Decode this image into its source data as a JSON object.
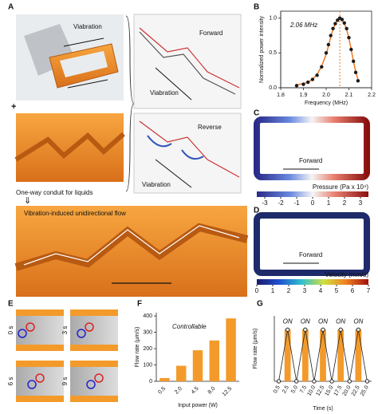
{
  "figure": {
    "panel_labels": [
      "A",
      "B",
      "C",
      "D",
      "E",
      "F",
      "G"
    ],
    "a_texts": {
      "vibration_top": "Viabration",
      "plus": "+",
      "conduit": "One-way conduit for liquids",
      "arrow_down": "⇓",
      "flow": "Vibration-induced unidirectional flow",
      "forward": "Forward",
      "forward_vibration": "Viabration",
      "reverse": "Reverse",
      "reverse_vibration": "Viabration"
    },
    "c_texts": {
      "forward": "Forward"
    },
    "d_texts": {
      "forward": "Forward"
    },
    "e_times": [
      "0 s",
      "3 s",
      "6 s",
      "9 s"
    ]
  },
  "colorbars": [
    {
      "label": "Pressure (Pa x 10⁴)",
      "ticks": [
        -3,
        -2,
        -1,
        0,
        1,
        2,
        3
      ],
      "lim": [
        -3.5,
        3.5
      ]
    },
    {
      "label": "Velocity (mm/s)",
      "ticks": [
        0,
        1,
        2,
        3,
        4,
        5,
        6,
        7
      ],
      "lim": [
        0,
        7
      ]
    }
  ],
  "chart_data": [
    {
      "type": "scatter",
      "xlabel": "Frequency (MHz)",
      "ylabel": "Normalized power intensity",
      "annotation": "2.06 MHz",
      "marker_x": 2.06,
      "x": [
        1.87,
        1.9,
        1.92,
        1.94,
        1.96,
        1.98,
        2.0,
        2.01,
        2.02,
        2.03,
        2.04,
        2.05,
        2.06,
        2.07,
        2.08,
        2.09,
        2.1,
        2.11,
        2.12,
        2.13,
        2.14
      ],
      "series": [
        {
          "color": "#1a1a1a",
          "values": [
            0.03,
            0.05,
            0.08,
            0.12,
            0.18,
            0.3,
            0.5,
            0.62,
            0.75,
            0.85,
            0.92,
            0.97,
            1.0,
            0.98,
            0.93,
            0.85,
            0.72,
            0.55,
            0.38,
            0.22,
            0.1
          ]
        },
        {
          "color": "#f07820",
          "values": [
            0.04,
            0.06,
            0.08,
            0.12,
            0.19,
            0.31,
            0.48,
            0.6,
            0.73,
            0.84,
            0.92,
            0.97,
            0.99,
            0.97,
            0.92,
            0.84,
            0.71,
            0.55,
            0.38,
            0.23,
            0.12
          ]
        }
      ],
      "xlim": [
        1.8,
        2.2
      ],
      "xticks": [
        1.8,
        1.9,
        {
          "value": 2.0,
          "label": "2.0"
        },
        2.1,
        2.2
      ],
      "ylim": [
        0,
        1.1
      ],
      "yticks": [
        {
          "value": 0,
          "label": "0.0"
        },
        0.5,
        {
          "value": 1,
          "label": "1.0"
        }
      ]
    },
    {
      "type": "bar",
      "xlabel": "Input power (W)",
      "ylabel": "Flow rate (μm/s)",
      "annotation": "Controllable",
      "color": "#f39a2b",
      "categories": [
        "0.5",
        "2.0",
        "4.5",
        "8.0",
        "12.5"
      ],
      "values": [
        20,
        95,
        190,
        250,
        385
      ],
      "ylim": [
        0,
        420
      ],
      "yticks": [
        0,
        100,
        200,
        300,
        400
      ]
    },
    {
      "type": "onoff",
      "xlabel": "Time (s)",
      "ylabel": "Flow rate (μm/s)",
      "color": "#f39a2b",
      "line_color": "#222222",
      "categories": [
        "0.5",
        "2.5",
        "5.0",
        "7.5",
        "10.0",
        "12.5",
        "15.0",
        "17.5",
        "20.0",
        "22.5",
        "25.0"
      ],
      "values": [
        0,
        300,
        0,
        300,
        0,
        300,
        0,
        300,
        0,
        300,
        0
      ],
      "annotations": [
        "ON",
        "ON",
        "ON",
        "ON",
        "ON"
      ],
      "ylim": [
        0,
        380
      ]
    }
  ]
}
